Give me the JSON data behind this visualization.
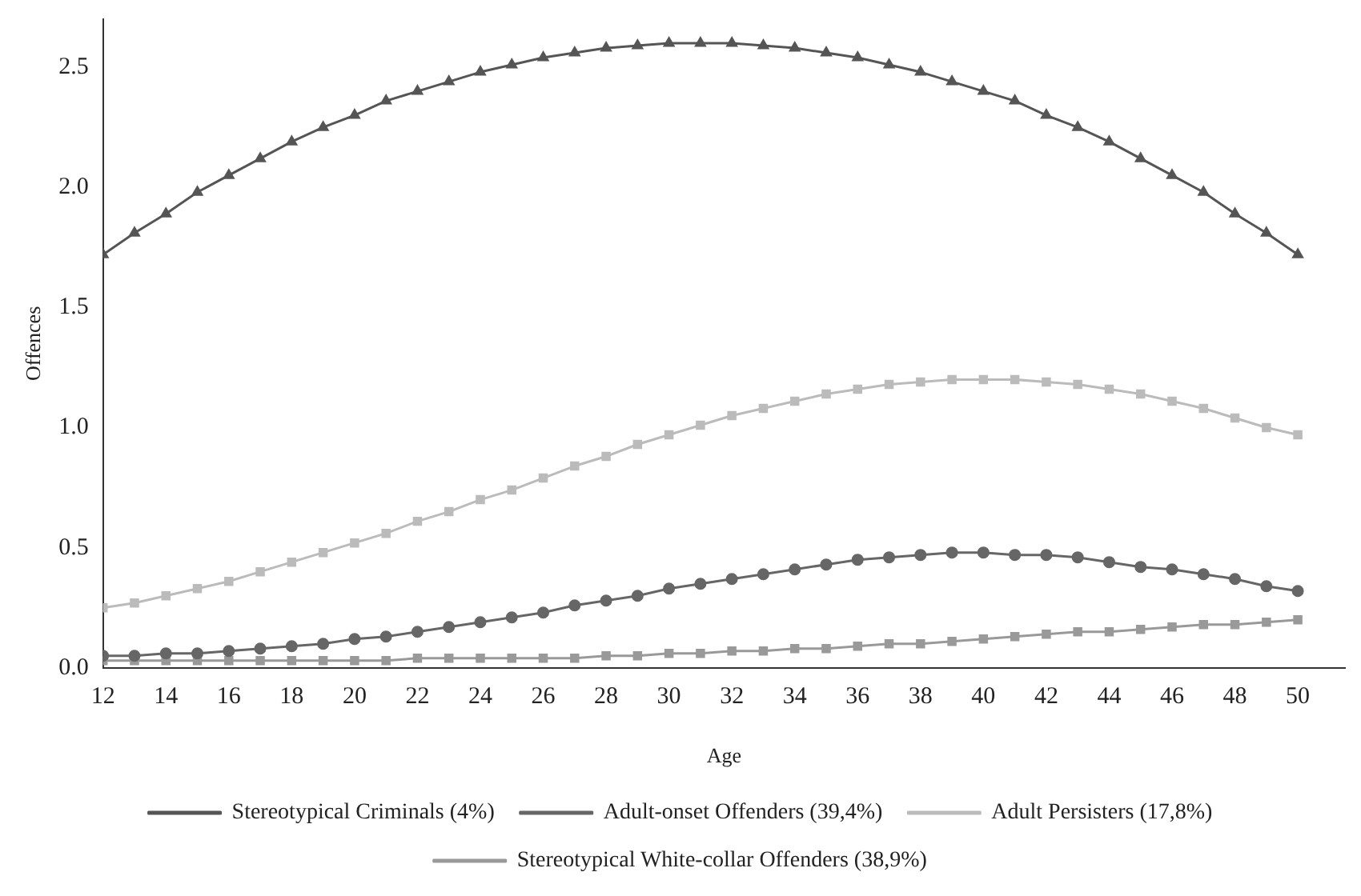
{
  "chart_data": {
    "type": "line",
    "xlabel": "Age",
    "ylabel": "Offences",
    "x": [
      12,
      13,
      14,
      15,
      16,
      17,
      18,
      19,
      20,
      21,
      22,
      23,
      24,
      25,
      26,
      27,
      28,
      29,
      30,
      31,
      32,
      33,
      34,
      35,
      36,
      37,
      38,
      39,
      40,
      41,
      42,
      43,
      44,
      45,
      46,
      47,
      48,
      49,
      50
    ],
    "xlim": [
      12,
      51.5
    ],
    "xticks": [
      12,
      14,
      16,
      18,
      20,
      22,
      24,
      26,
      28,
      30,
      32,
      34,
      36,
      38,
      40,
      42,
      44,
      46,
      48,
      50
    ],
    "ylim": [
      0,
      2.7
    ],
    "yticks": [
      {
        "value": 0,
        "label": "0.0"
      },
      {
        "value": 0.5,
        "label": "0.5"
      },
      {
        "value": 1,
        "label": "1.0"
      },
      {
        "value": 1.5,
        "label": "1.5"
      },
      {
        "value": 2,
        "label": "2.0"
      },
      {
        "value": 2.5,
        "label": "2.5"
      }
    ],
    "grid": false,
    "legend": "bottom",
    "line_style": "solid",
    "series": [
      {
        "name": "Stereotypical Criminals (4%)",
        "color": "#555555",
        "marker": "triangle",
        "values": [
          1.72,
          1.81,
          1.89,
          1.98,
          2.05,
          2.12,
          2.19,
          2.25,
          2.3,
          2.36,
          2.4,
          2.44,
          2.48,
          2.51,
          2.54,
          2.56,
          2.58,
          2.59,
          2.6,
          2.6,
          2.6,
          2.59,
          2.58,
          2.56,
          2.54,
          2.51,
          2.48,
          2.44,
          2.4,
          2.36,
          2.3,
          2.25,
          2.19,
          2.12,
          2.05,
          1.98,
          1.89,
          1.81,
          1.72
        ]
      },
      {
        "name": "Adult-onset Offenders (39,4%)",
        "color": "#666666",
        "marker": "circle",
        "values": [
          0.05,
          0.05,
          0.06,
          0.06,
          0.07,
          0.08,
          0.09,
          0.1,
          0.12,
          0.13,
          0.15,
          0.17,
          0.19,
          0.21,
          0.23,
          0.26,
          0.28,
          0.3,
          0.33,
          0.35,
          0.37,
          0.39,
          0.41,
          0.43,
          0.45,
          0.46,
          0.47,
          0.48,
          0.48,
          0.47,
          0.47,
          0.46,
          0.44,
          0.42,
          0.41,
          0.39,
          0.37,
          0.34,
          0.32
        ]
      },
      {
        "name": "Adult Persisters (17,8%)",
        "color": "#bbbbbb",
        "marker": "square",
        "values": [
          0.25,
          0.27,
          0.3,
          0.33,
          0.36,
          0.4,
          0.44,
          0.48,
          0.52,
          0.56,
          0.61,
          0.65,
          0.7,
          0.74,
          0.79,
          0.84,
          0.88,
          0.93,
          0.97,
          1.01,
          1.05,
          1.08,
          1.11,
          1.14,
          1.16,
          1.18,
          1.19,
          1.2,
          1.2,
          1.2,
          1.19,
          1.18,
          1.16,
          1.14,
          1.11,
          1.08,
          1.04,
          1.0,
          0.97
        ]
      },
      {
        "name": "Stereotypical White-collar Offenders (38,9%)",
        "color": "#999999",
        "marker": "square",
        "values": [
          0.03,
          0.03,
          0.03,
          0.03,
          0.03,
          0.03,
          0.03,
          0.03,
          0.03,
          0.03,
          0.04,
          0.04,
          0.04,
          0.04,
          0.04,
          0.04,
          0.05,
          0.05,
          0.06,
          0.06,
          0.07,
          0.07,
          0.08,
          0.08,
          0.09,
          0.1,
          0.1,
          0.11,
          0.12,
          0.13,
          0.14,
          0.15,
          0.15,
          0.16,
          0.17,
          0.18,
          0.18,
          0.19,
          0.2
        ]
      }
    ]
  }
}
